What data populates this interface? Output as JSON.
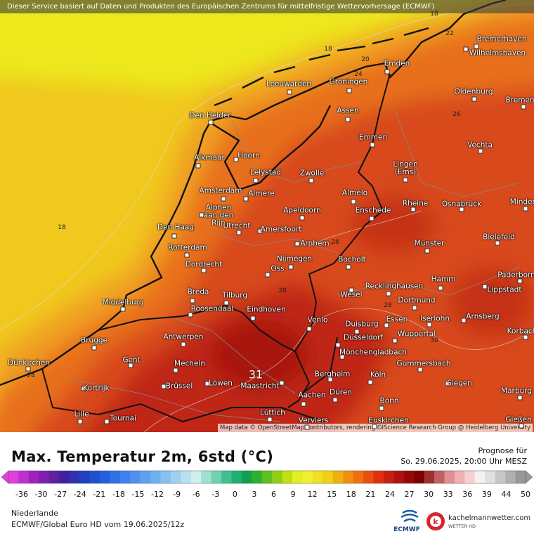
{
  "header": {
    "notice": "Dieser Service basiert auf Daten und Produkten des Europäischen Zentrums für mittelfristige Wettervorhersage (ECMWF)"
  },
  "map": {
    "attribution": "Map data © OpenStreetMap contributors, rendering GIScience Research Group @ Heidelberg University",
    "cities": [
      {
        "name": "Bremerhaven"
      },
      {
        "name": "Wilhelmshaven"
      },
      {
        "name": "Emden"
      },
      {
        "name": "Oldenburg"
      },
      {
        "name": "Bremen"
      },
      {
        "name": "Leeuwarden"
      },
      {
        "name": "Groningen"
      },
      {
        "name": "Den Helder"
      },
      {
        "name": "Assen"
      },
      {
        "name": "Emmen"
      },
      {
        "name": "Vechta"
      },
      {
        "name": "Alkmaar"
      },
      {
        "name": "Hoorn"
      },
      {
        "name": "Lelystad"
      },
      {
        "name": "Zwolle"
      },
      {
        "name": "Lingen (Ems)"
      },
      {
        "name": "Amsterdam"
      },
      {
        "name": "Almere"
      },
      {
        "name": "Almelo"
      },
      {
        "name": "Rheine"
      },
      {
        "name": "Osnabrück"
      },
      {
        "name": "Minden"
      },
      {
        "name": "Apeldoorn"
      },
      {
        "name": "Enschede"
      },
      {
        "name": "Alphen aan den Rijn"
      },
      {
        "name": "Utrecht"
      },
      {
        "name": "Amersfoort"
      },
      {
        "name": "Den Haag"
      },
      {
        "name": "Bielefeld"
      },
      {
        "name": "Arnhem"
      },
      {
        "name": "Münster"
      },
      {
        "name": "Rotterdam"
      },
      {
        "name": "Nijmegen"
      },
      {
        "name": "Bocholt"
      },
      {
        "name": "Dordrecht"
      },
      {
        "name": "Oss"
      },
      {
        "name": "Paderborn"
      },
      {
        "name": "Hamm"
      },
      {
        "name": "Recklinghausen"
      },
      {
        "name": "Lippstadt"
      },
      {
        "name": "Breda"
      },
      {
        "name": "Tilburg"
      },
      {
        "name": "Wesel"
      },
      {
        "name": "Middelburg"
      },
      {
        "name": "Dortmund"
      },
      {
        "name": "Roosendaal"
      },
      {
        "name": "Eindhoven"
      },
      {
        "name": "Iserlohn"
      },
      {
        "name": "Arnsberg"
      },
      {
        "name": "Essen"
      },
      {
        "name": "Venlo"
      },
      {
        "name": "Duisburg"
      },
      {
        "name": "Korbach"
      },
      {
        "name": "Wuppertal"
      },
      {
        "name": "Antwerpen"
      },
      {
        "name": "Düsseldorf"
      },
      {
        "name": "Brügge"
      },
      {
        "name": "Mönchengladbach"
      },
      {
        "name": "Gent"
      },
      {
        "name": "Mecheln"
      },
      {
        "name": "Gummersbach"
      },
      {
        "name": "Dünkirchen"
      },
      {
        "name": "Bergheim"
      },
      {
        "name": "Köln"
      },
      {
        "name": "Siegen"
      },
      {
        "name": "Kortrijk"
      },
      {
        "name": "Brüssel"
      },
      {
        "name": "Löwen"
      },
      {
        "name": "Maastricht"
      },
      {
        "name": "Düren"
      },
      {
        "name": "Marburg"
      },
      {
        "name": "Aachen"
      },
      {
        "name": "Bonn"
      },
      {
        "name": "Lille"
      },
      {
        "name": "Lüttich"
      },
      {
        "name": "Tournai"
      },
      {
        "name": "Gießen"
      },
      {
        "name": "Verviers"
      },
      {
        "name": "Euskirchen"
      }
    ],
    "isotherm_labels": [
      18,
      22,
      18,
      20,
      24,
      26,
      18,
      28,
      28,
      28,
      30,
      24,
      31
    ]
  },
  "legend": {
    "title": "Max. Temperatur 2m, 6std (°C)",
    "ticks": [
      -36,
      -30,
      -27,
      -24,
      -21,
      -18,
      -15,
      -12,
      -9,
      -6,
      -3,
      0,
      3,
      6,
      9,
      12,
      15,
      18,
      21,
      24,
      27,
      30,
      33,
      36,
      39,
      44,
      50
    ],
    "colors": [
      "#e040e0",
      "#c030d0",
      "#a020c0",
      "#8020b0",
      "#6020a0",
      "#4020a0",
      "#3030b0",
      "#2040c0",
      "#2050d0",
      "#2060e0",
      "#3070e8",
      "#4080f0",
      "#5090f0",
      "#60a0f0",
      "#70b0f0",
      "#88c0f0",
      "#a0d0f0",
      "#b8e0f0",
      "#d0f0f0",
      "#a0e0d0",
      "#70d0b0",
      "#40c090",
      "#20b070",
      "#10a050",
      "#30b030",
      "#60c020",
      "#90d010",
      "#c0e010",
      "#e0f020",
      "#f0f030",
      "#f0e020",
      "#f0d010",
      "#f0b010",
      "#f09010",
      "#f07010",
      "#e85010",
      "#e03010",
      "#c82010",
      "#b01010",
      "#980808",
      "#800000",
      "#a03030",
      "#c06060",
      "#e09090",
      "#f0b0b0",
      "#f8d0d0",
      "#f8f0f0",
      "#e0e0e0",
      "#c8c8c8",
      "#b0b0b0",
      "#989898"
    ]
  },
  "forecast": {
    "label": "Prognose für",
    "valid": "So. 29.06.2025, 20:00 Uhr MESZ"
  },
  "footer": {
    "region": "Niederlande",
    "model": "ECMWF/Global Euro HD vom  19.06.2025/12z"
  },
  "logos": {
    "ecmwf": "ECMWF",
    "brand": "kachelmannwetter.com",
    "brand_sub": "WETTER HD"
  }
}
